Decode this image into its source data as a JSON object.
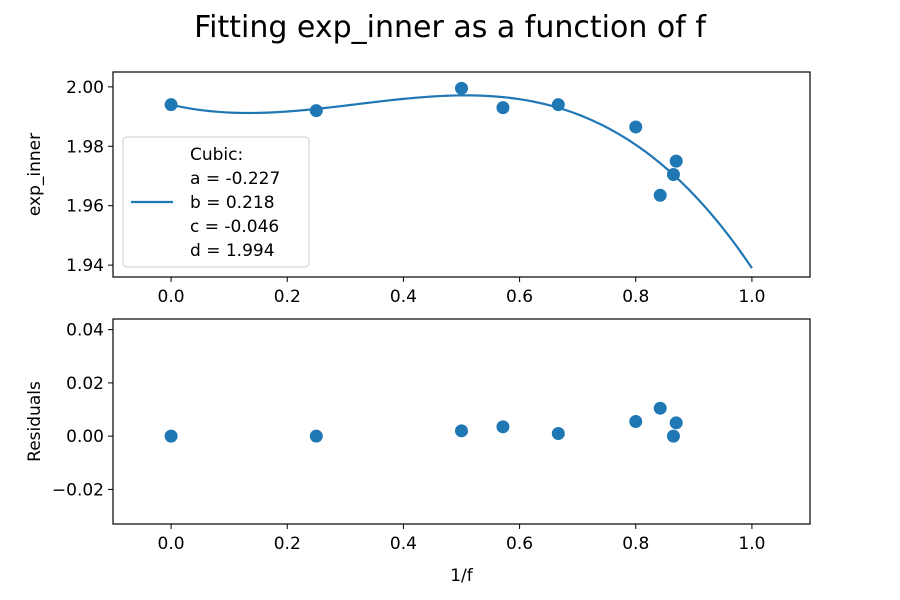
{
  "title": "Fitting exp_inner as a function of f",
  "colors": {
    "series": "#1f77b4"
  },
  "chart_data": [
    {
      "type": "scatter",
      "role": "fit",
      "xlim": [
        -0.1,
        1.1
      ],
      "ylim": [
        1.936,
        2.005
      ],
      "xticks": [
        0.0,
        0.2,
        0.4,
        0.6,
        0.8,
        1.0
      ],
      "xtick_labels": [
        "0.0",
        "0.2",
        "0.4",
        "0.6",
        "0.8",
        "1.0"
      ],
      "yticks": [
        1.94,
        1.96,
        1.98,
        2.0
      ],
      "ytick_labels": [
        "1.94",
        "1.96",
        "1.98",
        "2.00"
      ],
      "xlabel": "",
      "ylabel": "exp_inner",
      "points": {
        "x": [
          0.0,
          0.25,
          0.5,
          0.5714,
          0.6667,
          0.8,
          0.8421,
          0.8649,
          0.8696
        ],
        "y": [
          1.994,
          1.992,
          1.9995,
          1.993,
          1.994,
          1.9865,
          1.9635,
          1.9705,
          1.975
        ]
      },
      "fit": {
        "type": "cubic",
        "coefficients": {
          "a": -0.227,
          "b": 0.218,
          "c": -0.046,
          "d": 1.994
        },
        "x_range": [
          0.0,
          1.0
        ]
      },
      "legend": {
        "placement": "center-left",
        "lines": [
          "Cubic:",
          "a = -0.227",
          "b = 0.218",
          "c = -0.046",
          "d = 1.994"
        ]
      }
    },
    {
      "type": "scatter",
      "role": "residuals",
      "xlim": [
        -0.1,
        1.1
      ],
      "ylim": [
        -0.033,
        0.044
      ],
      "xticks": [
        0.0,
        0.2,
        0.4,
        0.6,
        0.8,
        1.0
      ],
      "xtick_labels": [
        "0.0",
        "0.2",
        "0.4",
        "0.6",
        "0.8",
        "1.0"
      ],
      "yticks": [
        -0.02,
        0.0,
        0.02,
        0.04
      ],
      "ytick_labels": [
        "−0.02",
        "0.00",
        "0.02",
        "0.04"
      ],
      "xlabel": "1/f",
      "ylabel": "Residuals",
      "points": {
        "x": [
          0.0,
          0.25,
          0.5,
          0.5714,
          0.6667,
          0.8,
          0.8421,
          0.8649,
          0.8696
        ],
        "y": [
          0.0,
          0.0,
          0.002,
          0.0035,
          0.001,
          0.0055,
          0.0105,
          0.0,
          0.005
        ]
      }
    }
  ]
}
